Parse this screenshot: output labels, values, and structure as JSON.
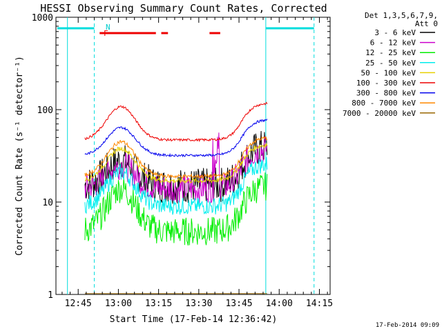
{
  "chart_data": {
    "type": "line",
    "title": "HESSI Observing Summary Count Rates, Corrected",
    "xlabel": "Start Time (17-Feb-14 12:36:42)",
    "ylabel": "Corrected Count Rate (s⁻¹ detector⁻¹)",
    "yscale": "log",
    "ylim": [
      1,
      1000
    ],
    "xlim": [
      "12:36:42",
      "14:19:00"
    ],
    "x_ticks": [
      "12:45",
      "13:00",
      "13:15",
      "13:30",
      "13:45",
      "14:00",
      "14:15"
    ],
    "y_ticks": [
      "1",
      "10",
      "100",
      "1000"
    ],
    "legend_header": [
      "Det 1,3,5,6,7,9,",
      "Att 0"
    ],
    "legend_position": "top-right",
    "series": [
      {
        "name": "3 - 6 keV",
        "color": "#000000"
      },
      {
        "name": "6 - 12 keV",
        "color": "#cc00cc"
      },
      {
        "name": "12 - 25 keV",
        "color": "#00ee00"
      },
      {
        "name": "25 - 50 keV",
        "color": "#00eeee"
      },
      {
        "name": "50 - 100 keV",
        "color": "#e8d000"
      },
      {
        "name": "100 - 300 keV",
        "color": "#ee0000"
      },
      {
        "name": "300 - 800 keV",
        "color": "#0000ee"
      },
      {
        "name": "800 - 7000 keV",
        "color": "#ff8800"
      },
      {
        "name": "7000 - 20000 keV",
        "color": "#996600"
      }
    ],
    "flag_labels": {
      "night": "N",
      "flare": "F"
    },
    "footer": "17-Feb-2014 09:09"
  }
}
